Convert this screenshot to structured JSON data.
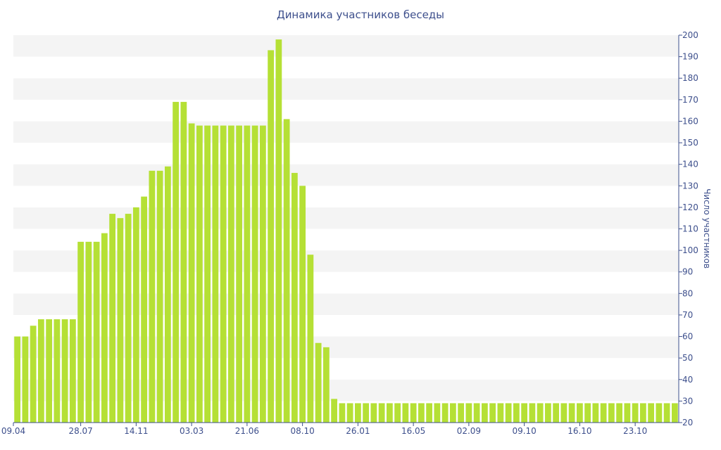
{
  "chart_data": {
    "type": "bar",
    "title": "Динамика участников беседы",
    "xlabel": "",
    "ylabel": "Число участников",
    "ylim": [
      20,
      200
    ],
    "yticks": [
      20,
      30,
      40,
      50,
      60,
      70,
      80,
      90,
      100,
      110,
      120,
      130,
      140,
      150,
      160,
      170,
      180,
      190,
      200
    ],
    "y_axis_side": "right",
    "grid": "alternating horizontal bands",
    "x_tick_labels": [
      {
        "index": 0,
        "label": "09.04"
      },
      {
        "index": 8,
        "label": "28.07"
      },
      {
        "index": 15,
        "label": "14.11"
      },
      {
        "index": 22,
        "label": "03.03"
      },
      {
        "index": 29,
        "label": "21.06"
      },
      {
        "index": 36,
        "label": "08.10"
      },
      {
        "index": 43,
        "label": "26.01"
      },
      {
        "index": 50,
        "label": "16.05"
      },
      {
        "index": 57,
        "label": "02.09"
      },
      {
        "index": 64,
        "label": "09.10"
      },
      {
        "index": 71,
        "label": "16.10"
      },
      {
        "index": 78,
        "label": "23.10"
      }
    ],
    "series": [
      {
        "color": "#b5e035",
        "values": [
          60,
          60,
          65,
          68,
          68,
          68,
          68,
          68,
          104,
          104,
          104,
          108,
          117,
          115,
          117,
          120,
          125,
          137,
          137,
          139,
          169,
          169,
          159,
          158,
          158,
          158,
          158,
          158,
          158,
          158,
          158,
          158,
          193,
          198,
          161,
          136,
          130,
          98,
          57,
          55,
          31,
          29,
          29,
          29,
          29,
          29,
          29,
          29,
          29,
          29,
          29,
          29,
          29,
          29,
          29,
          29,
          29,
          29,
          29,
          29,
          29,
          29,
          29,
          29,
          29,
          29,
          29,
          29,
          29,
          29,
          29,
          29,
          29,
          29,
          29,
          29,
          29,
          29,
          29,
          29,
          29,
          29,
          29,
          29
        ]
      }
    ]
  }
}
